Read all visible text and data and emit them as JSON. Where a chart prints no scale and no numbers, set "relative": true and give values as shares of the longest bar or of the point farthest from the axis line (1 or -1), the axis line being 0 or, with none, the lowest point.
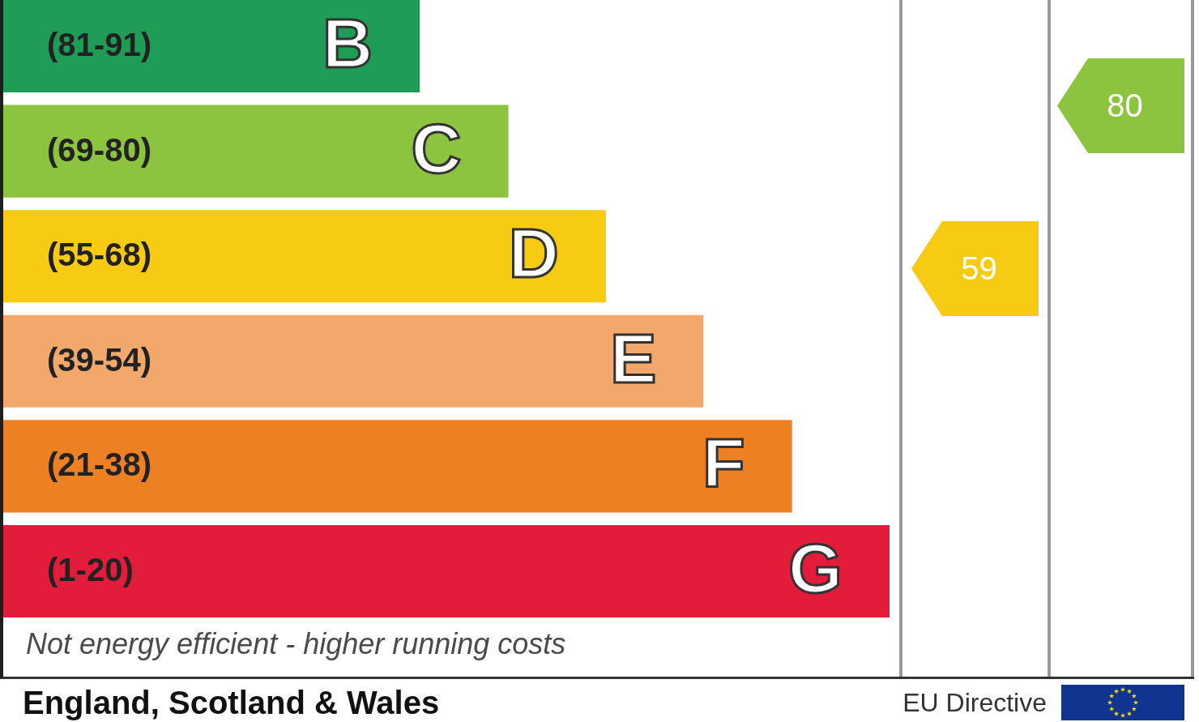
{
  "chart_data": {
    "type": "bar",
    "orientation": "horizontal",
    "relative": true,
    "categories": [
      "B",
      "C",
      "D",
      "E",
      "F",
      "G"
    ],
    "values": [
      0.47,
      0.57,
      0.68,
      0.79,
      0.89,
      1
    ],
    "colors": [
      "#1f9d57",
      "#8cc43f",
      "#f7cb14",
      "#f2a86b",
      "#ee8024",
      "#e31c3c"
    ],
    "annotations": [
      "(81-91)",
      "(69-80)",
      "(55-68)",
      "(39-54)",
      "(21-38)",
      "(1-20)",
      "59",
      "80",
      "Not energy efficient - higher running costs",
      "England, Scotland & Wales",
      "EU Directive"
    ]
  }
}
